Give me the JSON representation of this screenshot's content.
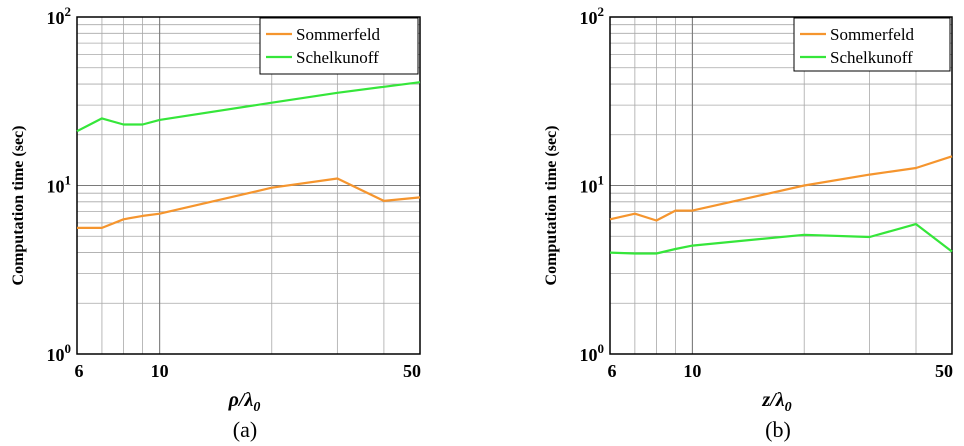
{
  "chart_data": [
    {
      "type": "line",
      "panel_label": "(a)",
      "xlabel_base": "ρ/λ",
      "xlabel_sub": "0",
      "ylabel": "Computation time (sec)",
      "xscale": "log",
      "yscale": "log",
      "xlim": [
        6,
        50
      ],
      "ylim": [
        1,
        100
      ],
      "x_ticks": [
        6,
        10,
        50
      ],
      "y_ticks": [
        {
          "base": "10",
          "exp": "0",
          "value": 1
        },
        {
          "base": "10",
          "exp": "1",
          "value": 10
        },
        {
          "base": "10",
          "exp": "2",
          "value": 100
        }
      ],
      "grid": true,
      "legend": "top-right",
      "series": [
        {
          "name": "Sommerfeld",
          "color": "#F5952E",
          "x": [
            6,
            7,
            8,
            9,
            10,
            20,
            30,
            40,
            50
          ],
          "y": [
            5.6,
            5.6,
            6.3,
            6.6,
            6.8,
            9.7,
            11,
            8.1,
            8.5
          ]
        },
        {
          "name": "Schelkunoff",
          "color": "#35E63A",
          "x": [
            6,
            7,
            8,
            9,
            10,
            20,
            30,
            40,
            50
          ],
          "y": [
            21,
            25,
            23,
            23,
            24.5,
            31,
            35.5,
            38.5,
            41
          ]
        }
      ]
    },
    {
      "type": "line",
      "panel_label": "(b)",
      "xlabel_base": "z/λ",
      "xlabel_sub": "0",
      "ylabel": "Computation time (sec)",
      "xscale": "log",
      "yscale": "log",
      "xlim": [
        6,
        50
      ],
      "ylim": [
        1,
        100
      ],
      "x_ticks": [
        6,
        10,
        50
      ],
      "y_ticks": [
        {
          "base": "10",
          "exp": "0",
          "value": 1
        },
        {
          "base": "10",
          "exp": "1",
          "value": 10
        },
        {
          "base": "10",
          "exp": "2",
          "value": 100
        }
      ],
      "grid": true,
      "legend": "top-right",
      "series": [
        {
          "name": "Sommerfeld",
          "color": "#F5952E",
          "x": [
            6,
            7,
            8,
            9,
            10,
            20,
            30,
            40,
            50
          ],
          "y": [
            6.3,
            6.8,
            6.2,
            7.1,
            7.1,
            10,
            11.6,
            12.7,
            14.9
          ]
        },
        {
          "name": "Schelkunoff",
          "color": "#35E63A",
          "x": [
            6,
            7,
            8,
            9,
            10,
            20,
            30,
            40,
            50
          ],
          "y": [
            4.0,
            3.95,
            3.95,
            4.2,
            4.4,
            5.1,
            4.95,
            5.9,
            4.05
          ]
        }
      ]
    }
  ]
}
